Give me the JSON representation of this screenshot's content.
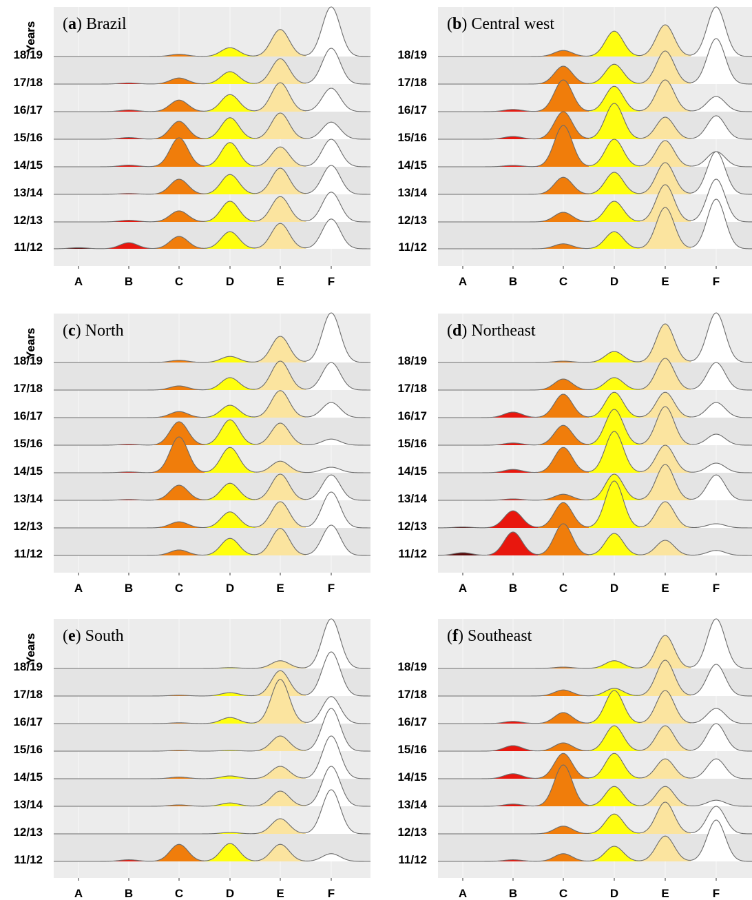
{
  "chart_data": {
    "type": "ridgeline",
    "y_axis_title": "Years",
    "categories": [
      "A",
      "B",
      "C",
      "D",
      "E",
      "F"
    ],
    "years": [
      "11/12",
      "12/13",
      "13/14",
      "14/15",
      "15/16",
      "16/17",
      "17/18",
      "18/19"
    ],
    "category_colors": {
      "A": "#5a0a0a",
      "B": "#e8170e",
      "C": "#f07d0b",
      "D": "#ffff0f",
      "E": "#fbe49f",
      "F": "#ffffff"
    },
    "panels": [
      {
        "letter": "a",
        "name": " Brazil",
        "series": [
          {
            "year": "11/12",
            "values": [
              0.04,
              0.22,
              0.45,
              0.62,
              0.92,
              1.08
            ]
          },
          {
            "year": "12/13",
            "values": [
              0.0,
              0.06,
              0.4,
              0.75,
              0.92,
              1.08
            ]
          },
          {
            "year": "13/14",
            "values": [
              0.0,
              0.03,
              0.55,
              0.72,
              0.95,
              1.05
            ]
          },
          {
            "year": "14/15",
            "values": [
              0.0,
              0.06,
              1.05,
              0.88,
              0.72,
              1.0
            ]
          },
          {
            "year": "15/16",
            "values": [
              0.0,
              0.06,
              0.65,
              0.78,
              0.95,
              0.62
            ]
          },
          {
            "year": "16/17",
            "values": [
              0.0,
              0.06,
              0.42,
              0.62,
              1.05,
              0.85
            ]
          },
          {
            "year": "17/18",
            "values": [
              0.0,
              0.04,
              0.22,
              0.45,
              0.92,
              1.3
            ]
          },
          {
            "year": "18/19",
            "values": [
              0.0,
              0.0,
              0.08,
              0.32,
              0.98,
              1.8
            ]
          }
        ]
      },
      {
        "letter": "b",
        "name": " Central west",
        "series": [
          {
            "year": "11/12",
            "values": [
              0.0,
              0.0,
              0.18,
              0.62,
              1.5,
              1.8
            ]
          },
          {
            "year": "12/13",
            "values": [
              0.0,
              0.0,
              0.35,
              0.75,
              1.35,
              1.55
            ]
          },
          {
            "year": "13/14",
            "values": [
              0.0,
              0.0,
              0.62,
              0.8,
              1.15,
              1.55
            ]
          },
          {
            "year": "14/15",
            "values": [
              0.0,
              0.05,
              1.5,
              1.0,
              0.95,
              0.55
            ]
          },
          {
            "year": "15/16",
            "values": [
              0.0,
              0.1,
              1.0,
              1.3,
              0.8,
              0.85
            ]
          },
          {
            "year": "16/17",
            "values": [
              0.0,
              0.08,
              1.15,
              0.92,
              1.15,
              0.55
            ]
          },
          {
            "year": "17/18",
            "values": [
              0.0,
              0.0,
              0.65,
              0.72,
              1.2,
              1.65
            ]
          },
          {
            "year": "18/19",
            "values": [
              0.0,
              0.0,
              0.22,
              0.92,
              1.15,
              1.8
            ]
          }
        ]
      },
      {
        "letter": "c",
        "name": " North",
        "series": [
          {
            "year": "11/12",
            "values": [
              0.0,
              0.0,
              0.2,
              0.62,
              0.98,
              1.1
            ]
          },
          {
            "year": "12/13",
            "values": [
              0.0,
              0.0,
              0.22,
              0.58,
              0.95,
              1.3
            ]
          },
          {
            "year": "13/14",
            "values": [
              0.0,
              0.03,
              0.55,
              0.62,
              0.95,
              0.92
            ]
          },
          {
            "year": "14/15",
            "values": [
              0.0,
              0.03,
              1.3,
              0.92,
              0.42,
              0.2
            ]
          },
          {
            "year": "15/16",
            "values": [
              0.0,
              0.03,
              0.85,
              0.92,
              0.8,
              0.22
            ]
          },
          {
            "year": "16/17",
            "values": [
              0.0,
              0.0,
              0.22,
              0.45,
              0.98,
              0.55
            ]
          },
          {
            "year": "17/18",
            "values": [
              0.0,
              0.0,
              0.15,
              0.45,
              1.05,
              1.0
            ]
          },
          {
            "year": "18/19",
            "values": [
              0.0,
              0.0,
              0.08,
              0.22,
              0.95,
              1.8
            ]
          }
        ]
      },
      {
        "letter": "d",
        "name": " Northeast",
        "series": [
          {
            "year": "11/12",
            "values": [
              0.1,
              0.85,
              1.15,
              0.8,
              0.55,
              0.18
            ]
          },
          {
            "year": "12/13",
            "values": [
              0.03,
              0.62,
              0.92,
              1.7,
              0.95,
              0.15
            ]
          },
          {
            "year": "13/14",
            "values": [
              0.0,
              0.05,
              0.22,
              0.95,
              1.3,
              0.92
            ]
          },
          {
            "year": "14/15",
            "values": [
              0.0,
              0.12,
              0.92,
              1.5,
              1.0,
              0.35
            ]
          },
          {
            "year": "15/16",
            "values": [
              0.0,
              0.08,
              0.72,
              1.3,
              1.4,
              0.4
            ]
          },
          {
            "year": "16/17",
            "values": [
              0.0,
              0.2,
              0.85,
              0.92,
              0.92,
              0.55
            ]
          },
          {
            "year": "17/18",
            "values": [
              0.0,
              0.0,
              0.4,
              0.45,
              1.15,
              1.0
            ]
          },
          {
            "year": "18/19",
            "values": [
              0.0,
              0.0,
              0.05,
              0.4,
              1.4,
              1.8
            ]
          }
        ]
      },
      {
        "letter": "e",
        "name": " South",
        "series": [
          {
            "year": "11/12",
            "values": [
              0.0,
              0.06,
              0.62,
              0.65,
              0.62,
              0.28
            ]
          },
          {
            "year": "12/13",
            "values": [
              0.0,
              0.0,
              0.0,
              0.05,
              0.55,
              1.6
            ]
          },
          {
            "year": "13/14",
            "values": [
              0.0,
              0.0,
              0.05,
              0.12,
              0.55,
              1.45
            ]
          },
          {
            "year": "14/15",
            "values": [
              0.0,
              0.0,
              0.06,
              0.1,
              0.45,
              1.55
            ]
          },
          {
            "year": "15/16",
            "values": [
              0.0,
              0.0,
              0.03,
              0.03,
              0.55,
              1.55
            ]
          },
          {
            "year": "16/17",
            "values": [
              0.0,
              0.0,
              0.03,
              0.22,
              1.6,
              0.98
            ]
          },
          {
            "year": "17/18",
            "values": [
              0.0,
              0.0,
              0.03,
              0.12,
              0.92,
              1.6
            ]
          },
          {
            "year": "18/19",
            "values": [
              0.0,
              0.0,
              0.0,
              0.03,
              0.28,
              1.8
            ]
          }
        ]
      },
      {
        "letter": "f",
        "name": " Southeast",
        "series": [
          {
            "year": "11/12",
            "values": [
              0.0,
              0.06,
              0.28,
              0.55,
              0.92,
              1.5
            ]
          },
          {
            "year": "12/13",
            "values": [
              0.0,
              0.0,
              0.28,
              0.72,
              1.15,
              1.0
            ]
          },
          {
            "year": "13/14",
            "values": [
              0.0,
              0.08,
              1.5,
              0.72,
              0.72,
              0.22
            ]
          },
          {
            "year": "14/15",
            "values": [
              0.0,
              0.18,
              0.92,
              0.92,
              0.72,
              0.72
            ]
          },
          {
            "year": "15/16",
            "values": [
              0.0,
              0.2,
              0.3,
              0.92,
              0.92,
              1.0
            ]
          },
          {
            "year": "16/17",
            "values": [
              0.0,
              0.08,
              0.4,
              1.2,
              1.2,
              0.55
            ]
          },
          {
            "year": "17/18",
            "values": [
              0.0,
              0.0,
              0.22,
              0.28,
              1.3,
              1.15
            ]
          },
          {
            "year": "18/19",
            "values": [
              0.0,
              0.0,
              0.05,
              0.28,
              1.2,
              1.8
            ]
          }
        ]
      }
    ]
  }
}
